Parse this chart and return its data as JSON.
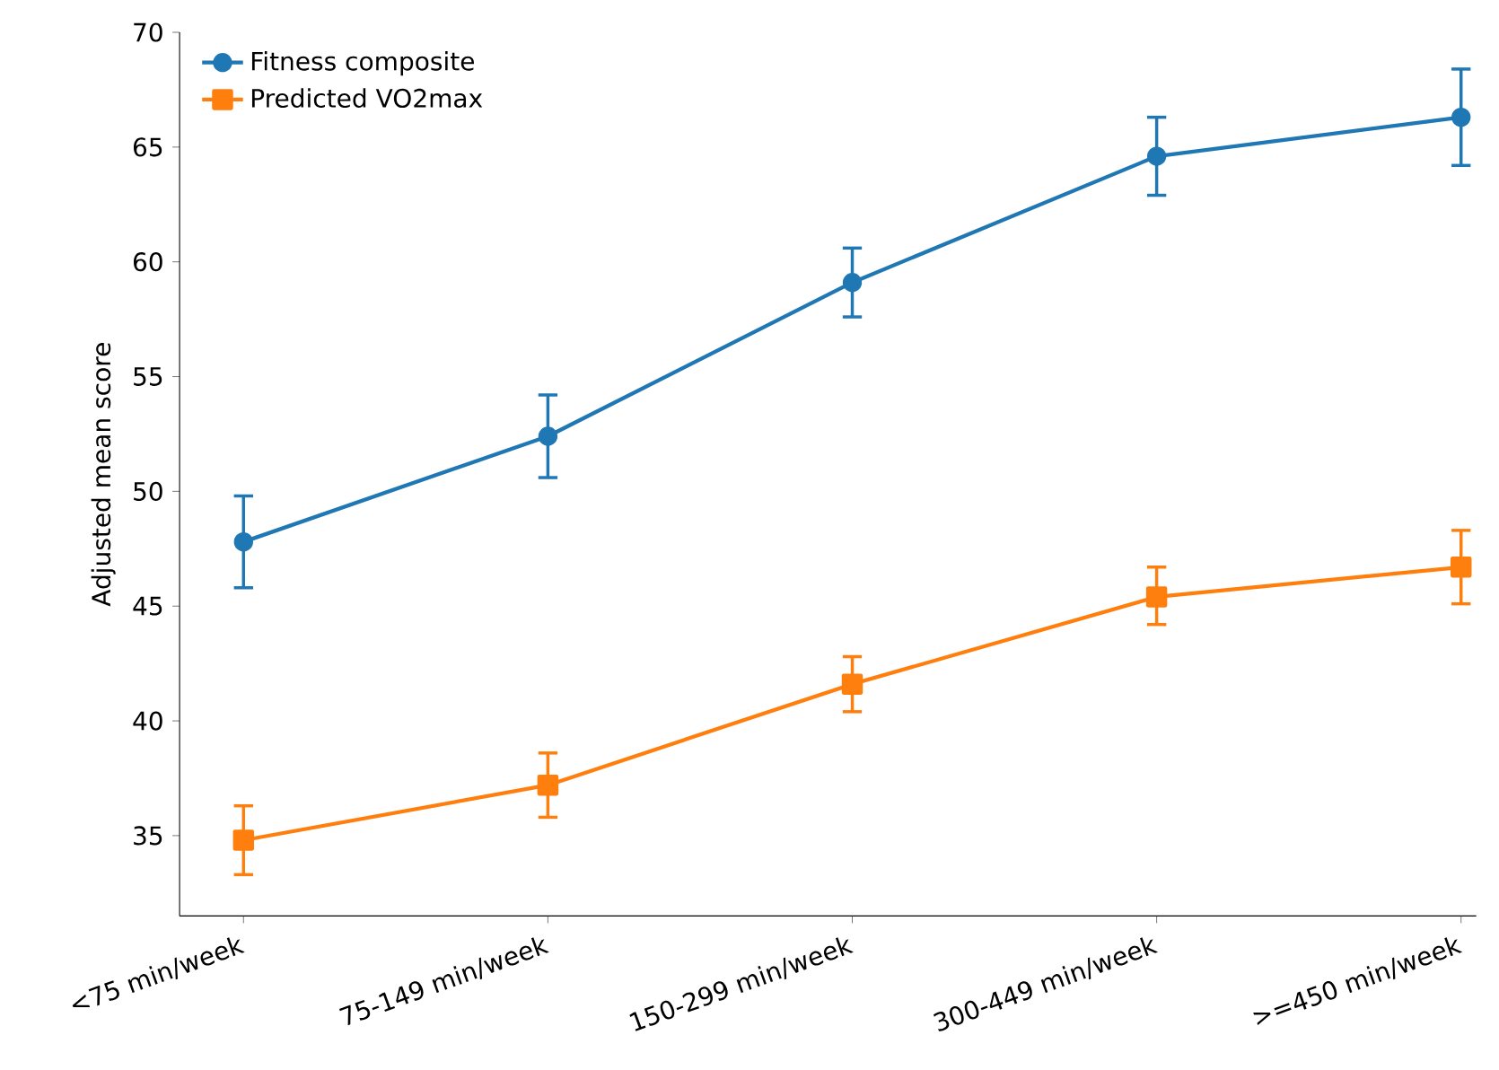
{
  "chart_data": {
    "type": "line",
    "ylabel": "Adjusted mean score",
    "categories": [
      "<75 min/week",
      "75-149 min/week",
      "150-299 min/week",
      "300-449 min/week",
      ">=450 min/week"
    ],
    "series": [
      {
        "name": "Fitness composite",
        "color": "#1f77b4",
        "marker": "circle",
        "values": [
          47.8,
          52.4,
          59.1,
          64.6,
          66.3
        ],
        "errors": [
          [
            45.8,
            49.8
          ],
          [
            50.6,
            54.2
          ],
          [
            57.6,
            60.6
          ],
          [
            62.9,
            66.3
          ],
          [
            64.2,
            68.4
          ]
        ]
      },
      {
        "name": "Predicted VO2max",
        "color": "#ff7f0e",
        "marker": "square",
        "values": [
          34.8,
          37.2,
          41.6,
          45.4,
          46.7
        ],
        "errors": [
          [
            33.3,
            36.3
          ],
          [
            35.8,
            38.6
          ],
          [
            40.4,
            42.8
          ],
          [
            44.2,
            46.7
          ],
          [
            45.1,
            48.3
          ]
        ]
      }
    ],
    "ylim": [
      31.5,
      70
    ],
    "yticks": [
      35,
      40,
      45,
      50,
      55,
      60,
      65,
      70
    ],
    "legend": "top left",
    "grid": false
  }
}
